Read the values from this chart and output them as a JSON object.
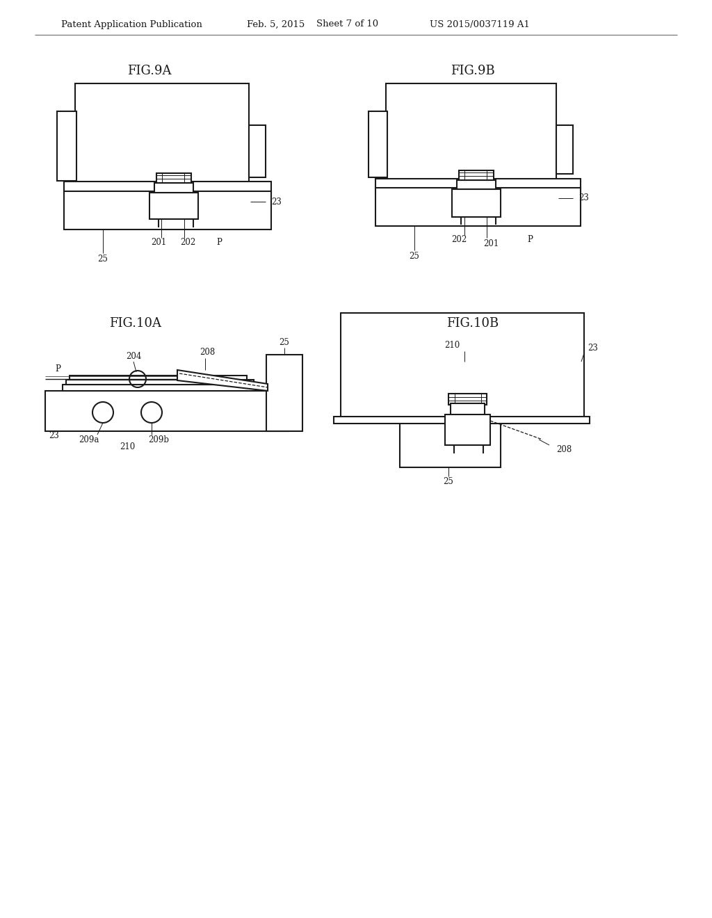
{
  "bg_color": "#ffffff",
  "header_text": "Patent Application Publication",
  "header_date": "Feb. 5, 2015",
  "header_sheet": "Sheet 7 of 10",
  "header_patent": "US 2015/0037119 A1",
  "fig9a_title": "FIG.9A",
  "fig9b_title": "FIG.9B",
  "fig10a_title": "FIG.10A",
  "fig10b_title": "FIG.10B",
  "line_color": "#1a1a1a",
  "line_width": 1.5,
  "thin_line": 0.7,
  "font_size_header": 9.5,
  "font_size_fig": 13,
  "font_size_label": 8.5
}
